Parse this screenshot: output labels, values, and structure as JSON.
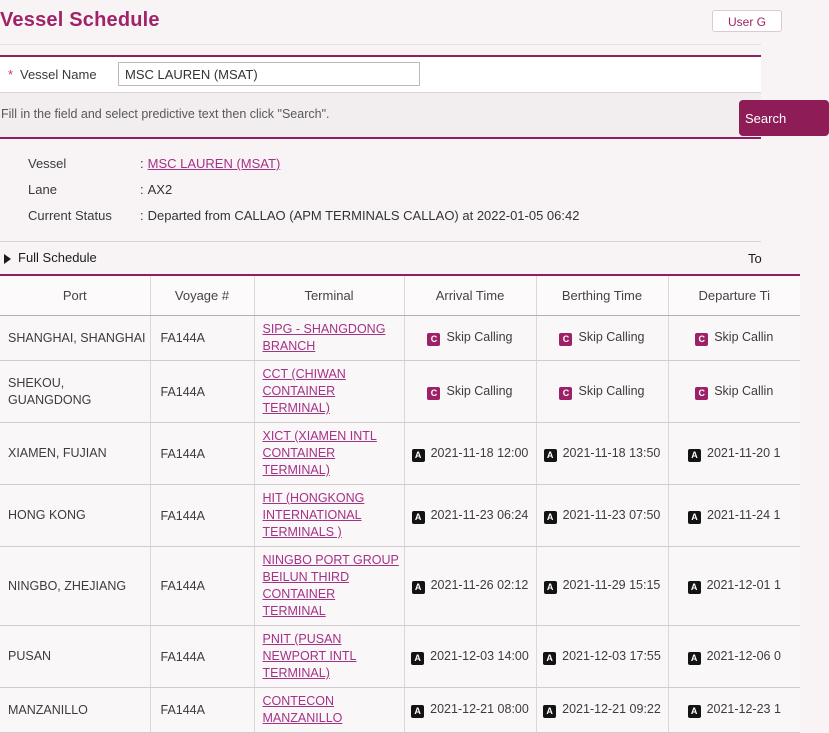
{
  "ui": {
    "colon": ":"
  },
  "colors": {
    "brand_magenta": "#a02368",
    "dark_magenta": "#8e2060",
    "search_button_bg": "#8e1d57",
    "badge_skip_bg": "#9c2167",
    "badge_actual_bg": "#131313"
  },
  "header": {
    "title": "Vessel Schedule",
    "user_guide_button": "User G"
  },
  "form": {
    "required_marker": "*",
    "vessel_name_label": "Vessel Name",
    "vessel_name_value": "MSC LAUREN (MSAT)",
    "hint": "Fill in the field and select predictive text then click \"Search\".",
    "search_button": "Search"
  },
  "vessel_info": {
    "rows": [
      {
        "label": "Vessel",
        "value": "MSC LAUREN (MSAT)"
      },
      {
        "label": "Lane",
        "value": "AX2"
      },
      {
        "label": "Current Status",
        "value": "Departed from CALLAO (APM TERMINALS CALLAO) at 2022-01-05 06:42"
      }
    ]
  },
  "schedule": {
    "section_title": "Full Schedule",
    "right_text": "To",
    "columns": [
      "Port",
      "Voyage #",
      "Terminal",
      "Arrival Time",
      "Berthing Time",
      "Departure Ti"
    ],
    "rows": [
      {
        "port": "SHANGHAI, SHANGHAI",
        "voyage": "FA144A",
        "terminal": "SIPG - SHANGDONG BRANCH",
        "arrival": {
          "badge": "C",
          "text": "Skip Calling"
        },
        "berthing": {
          "badge": "C",
          "text": "Skip Calling"
        },
        "departure": {
          "badge": "C",
          "text": "Skip Callin"
        }
      },
      {
        "port": "SHEKOU, GUANGDONG",
        "voyage": "FA144A",
        "terminal": "CCT (CHIWAN CONTAINER TERMINAL)",
        "arrival": {
          "badge": "C",
          "text": "Skip Calling"
        },
        "berthing": {
          "badge": "C",
          "text": "Skip Calling"
        },
        "departure": {
          "badge": "C",
          "text": "Skip Callin"
        }
      },
      {
        "port": "XIAMEN, FUJIAN",
        "voyage": "FA144A",
        "terminal": "XICT (XIAMEN INTL CONTAINER TERMINAL)",
        "arrival": {
          "badge": "A",
          "text": "2021-11-18 12:00"
        },
        "berthing": {
          "badge": "A",
          "text": "2021-11-18 13:50"
        },
        "departure": {
          "badge": "A",
          "text": "2021-11-20 1"
        }
      },
      {
        "port": "HONG KONG",
        "voyage": "FA144A",
        "terminal": "HIT (HONGKONG INTERNATIONAL TERMINALS )",
        "arrival": {
          "badge": "A",
          "text": "2021-11-23 06:24"
        },
        "berthing": {
          "badge": "A",
          "text": "2021-11-23 07:50"
        },
        "departure": {
          "badge": "A",
          "text": "2021-11-24 1"
        }
      },
      {
        "port": "NINGBO, ZHEJIANG",
        "voyage": "FA144A",
        "terminal": "NINGBO PORT GROUP BEILUN THIRD CONTAINER TERMINAL",
        "arrival": {
          "badge": "A",
          "text": "2021-11-26 02:12"
        },
        "berthing": {
          "badge": "A",
          "text": "2021-11-29 15:15"
        },
        "departure": {
          "badge": "A",
          "text": "2021-12-01 1"
        }
      },
      {
        "port": "PUSAN",
        "voyage": "FA144A",
        "terminal": "PNIT (PUSAN NEWPORT INTL TERMINAL)",
        "arrival": {
          "badge": "A",
          "text": "2021-12-03 14:00"
        },
        "berthing": {
          "badge": "A",
          "text": "2021-12-03 17:55"
        },
        "departure": {
          "badge": "A",
          "text": "2021-12-06 0"
        }
      },
      {
        "port": "MANZANILLO",
        "voyage": "FA144A",
        "terminal": "CONTECON MANZANILLO",
        "arrival": {
          "badge": "A",
          "text": "2021-12-21 08:00"
        },
        "berthing": {
          "badge": "A",
          "text": "2021-12-21 09:22"
        },
        "departure": {
          "badge": "A",
          "text": "2021-12-23 1"
        }
      }
    ]
  }
}
